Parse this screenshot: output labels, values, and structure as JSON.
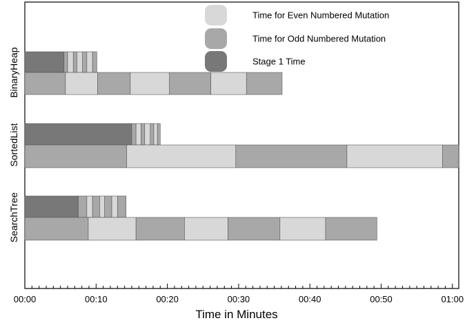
{
  "chart_data": {
    "type": "bar",
    "orientation": "horizontal-stacked",
    "xlabel": "Time in Minutes",
    "ylabel": "",
    "x_unit": "minutes",
    "xlim": [
      0,
      61
    ],
    "x_ticks": [
      0,
      10,
      20,
      30,
      40,
      50,
      60
    ],
    "x_tick_labels": [
      "00:00",
      "00:10",
      "00:20",
      "00:30",
      "00:40",
      "00:50",
      "01:00"
    ],
    "grid": false,
    "legend_position": "top-right",
    "legend": [
      {
        "key": "even",
        "label": "Time for Even Numbered Mutation",
        "color": "#d8d8d8"
      },
      {
        "key": "odd",
        "label": "Time for Odd Numbered Mutation",
        "color": "#a8a8a8"
      },
      {
        "key": "stage1",
        "label": "Stage 1 Time",
        "color": "#787878"
      }
    ],
    "colors": {
      "even": "#d8d8d8",
      "odd": "#a8a8a8",
      "stage1": "#787878",
      "outline": "#555555"
    },
    "categories": [
      {
        "name": "BinaryHeap",
        "stage1_row": [
          {
            "kind": "stage1",
            "start": 0,
            "end": 5.5
          },
          {
            "kind": "odd",
            "start": 5.5,
            "end": 6.0
          },
          {
            "kind": "even",
            "start": 6.0,
            "end": 6.8
          },
          {
            "kind": "odd",
            "start": 6.8,
            "end": 7.3
          },
          {
            "kind": "even",
            "start": 7.3,
            "end": 8.1
          },
          {
            "kind": "odd",
            "start": 8.1,
            "end": 8.7
          },
          {
            "kind": "even",
            "start": 8.7,
            "end": 9.5
          },
          {
            "kind": "odd",
            "start": 9.5,
            "end": 10.1
          }
        ],
        "mutation_row": [
          {
            "kind": "odd",
            "start": 0,
            "end": 5.7
          },
          {
            "kind": "even",
            "start": 5.7,
            "end": 10.2
          },
          {
            "kind": "odd",
            "start": 10.2,
            "end": 14.8
          },
          {
            "kind": "even",
            "start": 14.8,
            "end": 20.3
          },
          {
            "kind": "odd",
            "start": 20.3,
            "end": 26.1
          },
          {
            "kind": "even",
            "start": 26.1,
            "end": 31.1
          },
          {
            "kind": "odd",
            "start": 31.1,
            "end": 36.1
          }
        ]
      },
      {
        "name": "SortedList",
        "stage1_row": [
          {
            "kind": "stage1",
            "start": 0,
            "end": 15.0
          },
          {
            "kind": "odd",
            "start": 15.0,
            "end": 15.6
          },
          {
            "kind": "even",
            "start": 15.6,
            "end": 16.3
          },
          {
            "kind": "odd",
            "start": 16.3,
            "end": 16.8
          },
          {
            "kind": "even",
            "start": 16.8,
            "end": 17.6
          },
          {
            "kind": "odd",
            "start": 17.6,
            "end": 18.1
          },
          {
            "kind": "even",
            "start": 18.1,
            "end": 18.6
          },
          {
            "kind": "odd",
            "start": 18.6,
            "end": 19.0
          }
        ],
        "mutation_row": [
          {
            "kind": "odd",
            "start": 0,
            "end": 14.3
          },
          {
            "kind": "even",
            "start": 14.3,
            "end": 29.6
          },
          {
            "kind": "odd",
            "start": 29.6,
            "end": 45.2
          },
          {
            "kind": "even",
            "start": 45.2,
            "end": 58.6
          },
          {
            "kind": "odd",
            "start": 58.6,
            "end": 61.0
          }
        ]
      },
      {
        "name": "SearchTree",
        "stage1_row": [
          {
            "kind": "stage1",
            "start": 0,
            "end": 7.5
          },
          {
            "kind": "odd",
            "start": 7.5,
            "end": 8.7
          },
          {
            "kind": "even",
            "start": 8.7,
            "end": 9.5
          },
          {
            "kind": "odd",
            "start": 9.5,
            "end": 10.5
          },
          {
            "kind": "even",
            "start": 10.5,
            "end": 11.2
          },
          {
            "kind": "odd",
            "start": 11.2,
            "end": 12.2
          },
          {
            "kind": "even",
            "start": 12.2,
            "end": 13.0
          },
          {
            "kind": "odd",
            "start": 13.0,
            "end": 14.2
          }
        ],
        "mutation_row": [
          {
            "kind": "odd",
            "start": 0,
            "end": 8.9
          },
          {
            "kind": "even",
            "start": 8.9,
            "end": 15.6
          },
          {
            "kind": "odd",
            "start": 15.6,
            "end": 22.4
          },
          {
            "kind": "even",
            "start": 22.4,
            "end": 28.5
          },
          {
            "kind": "odd",
            "start": 28.5,
            "end": 35.8
          },
          {
            "kind": "even",
            "start": 35.8,
            "end": 42.2
          },
          {
            "kind": "odd",
            "start": 42.2,
            "end": 49.4
          }
        ]
      }
    ]
  }
}
